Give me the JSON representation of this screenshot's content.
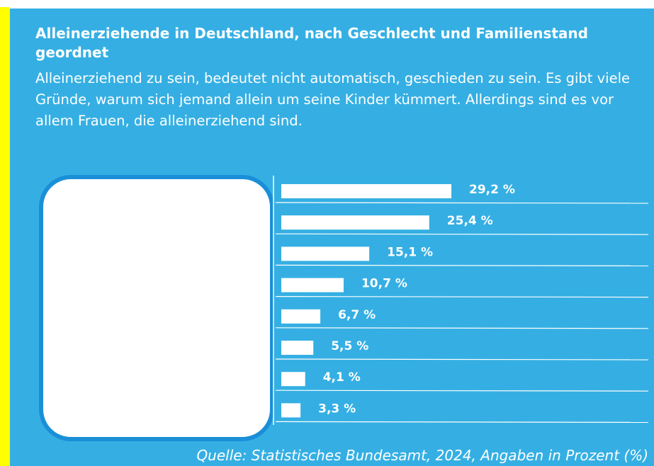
{
  "chart_data": {
    "type": "bar",
    "orientation": "horizontal",
    "title": "Alleinerziehende in Deutschland, nach Geschlecht und Familienstand geordnet",
    "subtitle": "Alleinerziehend zu sein, bedeutet nicht automatisch, geschieden zu sein. Es gibt viele Gründe, warum sich jemand allein um seine Kinder kümmert. Allerdings sind es vor allem Frauen, die alleinerziehend sind.",
    "values": [
      29.2,
      25.4,
      15.1,
      10.7,
      6.7,
      5.5,
      4.1,
      3.3
    ],
    "value_labels": [
      "29,2 %",
      "25,4 %",
      "15,1 %",
      "10,7 %",
      "6,7 %",
      "5,5 %",
      "4,1 %",
      "3,3 %"
    ],
    "color": "#ffffff",
    "source": "Quelle: Statistisches Bundesamt, 2024, Angaben in Prozent (%)"
  }
}
